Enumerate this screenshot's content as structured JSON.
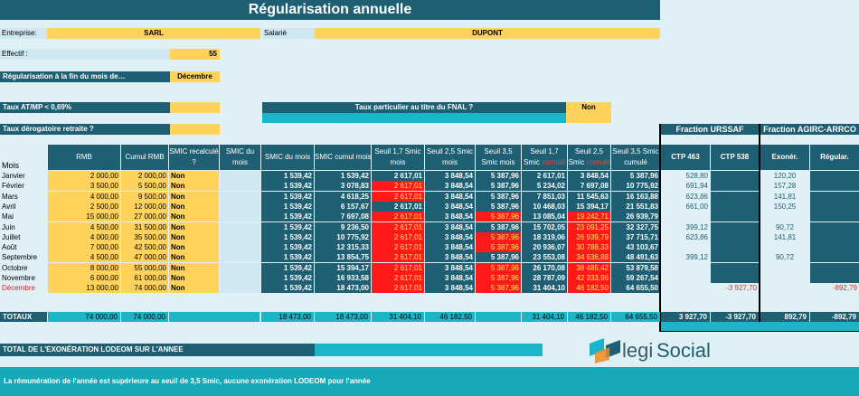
{
  "title": "Régularisation annuelle",
  "company": {
    "label": "Entreprise:",
    "value": "SARL",
    "employee_label": "Salarié",
    "employee_value": "DUPONT"
  },
  "effectif": {
    "label": "Effectif :",
    "value": "55"
  },
  "regul_month": {
    "label": "Régularisation à la fin du mois de…",
    "value": "Décembre"
  },
  "atmp": {
    "label": "Taux AT/MP < 0,69%",
    "fnal_label": "Taux particulier au titre du FNAL ?",
    "fnal_value": "Non"
  },
  "derog": {
    "label": "Taux dérogatoire retraite ?"
  },
  "fractions": {
    "urssaf": "Fraction URSSAF",
    "agirc": "Fraction AGIRC-ARRCO"
  },
  "headers": {
    "mois": "Mois",
    "rmb": "RMB",
    "cumul_rmb": "Cumul RMB",
    "smic_recalc": "SMIC recalculé ?",
    "smic_mois": "SMIC du mois",
    "smic_mois2": "SMIC du mois",
    "smic_cumul": "SMIC cumul mois",
    "s17m": "Seuil 1,7 Smic mois",
    "s25m": "Seuil 2,5 Smic mois",
    "s35m": "Seuil 3,5 Smic mois",
    "s17c": "Seuil 1,7 Smic",
    "s25c": "Seuil 2,5 Smic",
    "s35c": "Seuil 3,5 Smic cumulé",
    "cumule": "cumulé",
    "ctp463": "CTP 463",
    "ctp538": "CTP 538",
    "exoner": "Exonér.",
    "regular": "Régular."
  },
  "rows": [
    {
      "mois": "Janvier",
      "rmb": "2 000,00",
      "cumul": "2 000,00",
      "rec": "Non",
      "sm": "1 539,42",
      "sc": "1 539,42",
      "a": "2 617,01",
      "b": "3 848,54",
      "c": "5 387,96",
      "d": "2 617,01",
      "e": "3 848,54",
      "f": "5 387,96",
      "u1": "528,80",
      "u2": "",
      "x1": "120,20",
      "x2": ""
    },
    {
      "mois": "Février",
      "rmb": "3 500,00",
      "cumul": "5 500,00",
      "rec": "Non",
      "sm": "1 539,42",
      "sc": "3 078,83",
      "a": "2 617,01",
      "b": "3 848,54",
      "c": "5 387,96",
      "d": "5 234,02",
      "e": "7 697,08",
      "f": "10 775,92",
      "u1": "691,94",
      "u2": "",
      "x1": "157,28",
      "x2": ""
    },
    {
      "mois": "Mars",
      "rmb": "4 000,00",
      "cumul": "9 500,00",
      "rec": "Non",
      "sm": "1 539,42",
      "sc": "4 618,25",
      "a": "2 617,01",
      "b": "3 848,54",
      "c": "5 387,96",
      "d": "7 851,03",
      "e": "11 545,63",
      "f": "16 163,88",
      "u1": "623,86",
      "u2": "",
      "x1": "141,81",
      "x2": ""
    },
    {
      "mois": "Avril",
      "rmb": "2 500,00",
      "cumul": "12 000,00",
      "rec": "Non",
      "sm": "1 539,42",
      "sc": "6 157,67",
      "a": "2 617,01",
      "b": "3 848,54",
      "c": "5 387,96",
      "d": "10 468,03",
      "e": "15 394,17",
      "f": "21 551,83",
      "u1": "661,00",
      "u2": "",
      "x1": "150,25",
      "x2": ""
    },
    {
      "mois": "Mai",
      "rmb": "15 000,00",
      "cumul": "27 000,00",
      "rec": "Non",
      "sm": "1 539,42",
      "sc": "7 697,08",
      "a": "2 617,01",
      "b": "3 848,54",
      "c": "5 387,96",
      "d": "13 085,04",
      "e": "19 242,71",
      "f": "26 939,79",
      "u1": "",
      "u2": "",
      "x1": "",
      "x2": ""
    },
    {
      "mois": "Juin",
      "rmb": "4 500,00",
      "cumul": "31 500,00",
      "rec": "Non",
      "sm": "1 539,42",
      "sc": "9 236,50",
      "a": "2 617,01",
      "b": "3 848,54",
      "c": "5 387,96",
      "d": "15 702,05",
      "e": "23 091,25",
      "f": "32 327,75",
      "u1": "399,12",
      "u2": "",
      "x1": "90,72",
      "x2": ""
    },
    {
      "mois": "Juillet",
      "rmb": "4 000,00",
      "cumul": "35 500,00",
      "rec": "Non",
      "sm": "1 539,42",
      "sc": "10 775,92",
      "a": "2 617,01",
      "b": "3 848,54",
      "c": "5 387,96",
      "d": "18 319,06",
      "e": "26 939,79",
      "f": "37 715,71",
      "u1": "623,86",
      "u2": "",
      "x1": "141,81",
      "x2": ""
    },
    {
      "mois": "Août",
      "rmb": "7 000,00",
      "cumul": "42 500,00",
      "rec": "Non",
      "sm": "1 539,42",
      "sc": "12 315,33",
      "a": "2 617,01",
      "b": "3 848,54",
      "c": "5 387,96",
      "d": "20 936,07",
      "e": "30 788,33",
      "f": "43 103,67",
      "u1": "",
      "u2": "",
      "x1": "",
      "x2": ""
    },
    {
      "mois": "Septembre",
      "rmb": "4 500,00",
      "cumul": "47 000,00",
      "rec": "Non",
      "sm": "1 539,42",
      "sc": "13 854,75",
      "a": "2 617,01",
      "b": "3 848,54",
      "c": "5 387,96",
      "d": "23 553,08",
      "e": "34 636,88",
      "f": "48 491,63",
      "u1": "399,12",
      "u2": "",
      "x1": "90,72",
      "x2": ""
    },
    {
      "mois": "Octobre",
      "rmb": "8 000,00",
      "cumul": "55 000,00",
      "rec": "Non",
      "sm": "1 539,42",
      "sc": "15 394,17",
      "a": "2 617,01",
      "b": "3 848,54",
      "c": "5 387,96",
      "d": "26 170,08",
      "e": "38 485,42",
      "f": "53 879,58",
      "u1": "",
      "u2": "",
      "x1": "",
      "x2": ""
    },
    {
      "mois": "Novembre",
      "rmb": "6 000,00",
      "cumul": "61 000,00",
      "rec": "Non",
      "sm": "1 539,42",
      "sc": "16 933,58",
      "a": "2 617,01",
      "b": "3 848,54",
      "c": "5 387,96",
      "d": "28 787,09",
      "e": "42 333,96",
      "f": "59 267,54",
      "u1": "",
      "u2": "",
      "x1": "",
      "x2": ""
    },
    {
      "mois": "Décembre",
      "rmb": "13 000,00",
      "cumul": "74 000,00",
      "rec": "Non",
      "sm": "1 539,42",
      "sc": "18 473,00",
      "a": "2 617,01",
      "b": "3 848,54",
      "c": "5 387,96",
      "d": "31 404,10",
      "e": "46 182,50",
      "f": "64 655,50",
      "u1": "",
      "u2": "-3 927,70",
      "x1": "",
      "x2": "-892,79"
    }
  ],
  "totals": {
    "label": "TOTAUX",
    "rmb": "74 000,00",
    "cumul": "74 000,00",
    "sm": "18 473,00",
    "sc": "18 473,00",
    "a": "31 404,10",
    "b": "46 182,50",
    "d": "31 404,10",
    "e": "46 182,50",
    "f": "64 655,50",
    "u1": "3 927,70",
    "u2": "-3 927,70",
    "x1": "892,79",
    "x2": "-892,79"
  },
  "total_exo": "TOTAL DE L'EXONÉRATION LODEOM SUR L'ANNEE",
  "logo": {
    "part1": "legi",
    "part2": "Social"
  },
  "footer": "La rémunération de l'année est supérieure au seuil de 3,5 Smic, aucune exonération LODEOM pour l'année"
}
